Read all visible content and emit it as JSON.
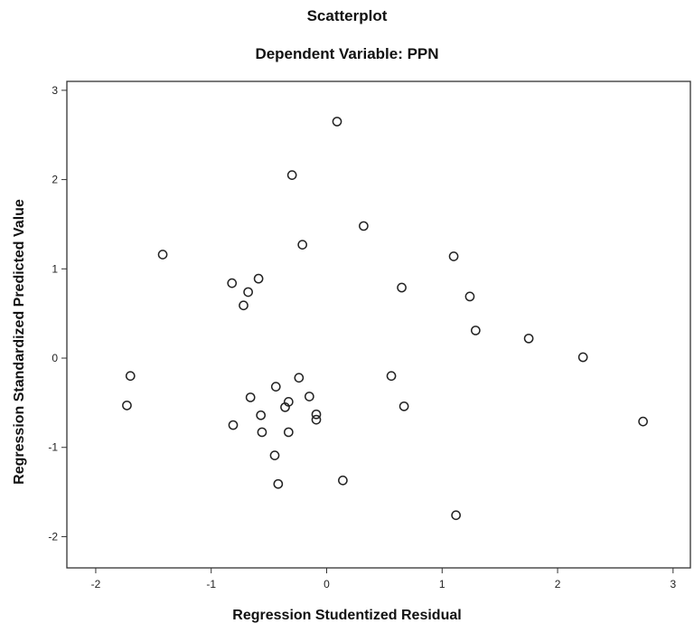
{
  "chart_data": {
    "type": "scatter",
    "title": "Scatterplot",
    "subtitle": "Dependent Variable: PPN",
    "xlabel": "Regression Studentized Residual",
    "ylabel": "Regression Standardized Predicted Value",
    "xlim": [
      -2.25,
      3.15
    ],
    "ylim": [
      -2.35,
      3.1
    ],
    "xticks": [
      "-2",
      "-1",
      "0",
      "1",
      "2",
      "3"
    ],
    "yticks": [
      "-2",
      "-1",
      "0",
      "1",
      "2",
      "3"
    ],
    "xtick_values": [
      -2,
      -1,
      0,
      1,
      2,
      3
    ],
    "ytick_values": [
      -2,
      -1,
      0,
      1,
      2,
      3
    ],
    "grid": false,
    "marker": "open-circle",
    "points": [
      {
        "x": 0.09,
        "y": 2.65
      },
      {
        "x": -0.3,
        "y": 2.05
      },
      {
        "x": 0.32,
        "y": 1.48
      },
      {
        "x": -0.21,
        "y": 1.27
      },
      {
        "x": -1.42,
        "y": 1.16
      },
      {
        "x": 1.1,
        "y": 1.14
      },
      {
        "x": -0.82,
        "y": 0.84
      },
      {
        "x": -0.59,
        "y": 0.89
      },
      {
        "x": -0.68,
        "y": 0.74
      },
      {
        "x": 0.65,
        "y": 0.79
      },
      {
        "x": 1.24,
        "y": 0.69
      },
      {
        "x": -0.72,
        "y": 0.59
      },
      {
        "x": 1.29,
        "y": 0.31
      },
      {
        "x": 1.75,
        "y": 0.22
      },
      {
        "x": 2.22,
        "y": 0.01
      },
      {
        "x": -1.7,
        "y": -0.2
      },
      {
        "x": 0.56,
        "y": -0.2
      },
      {
        "x": -0.24,
        "y": -0.22
      },
      {
        "x": -0.44,
        "y": -0.32
      },
      {
        "x": -0.15,
        "y": -0.43
      },
      {
        "x": -0.66,
        "y": -0.44
      },
      {
        "x": -1.73,
        "y": -0.53
      },
      {
        "x": -0.33,
        "y": -0.49
      },
      {
        "x": -0.36,
        "y": -0.55
      },
      {
        "x": 0.67,
        "y": -0.54
      },
      {
        "x": -0.57,
        "y": -0.64
      },
      {
        "x": -0.09,
        "y": -0.63
      },
      {
        "x": -0.09,
        "y": -0.69
      },
      {
        "x": -0.81,
        "y": -0.75
      },
      {
        "x": -0.56,
        "y": -0.83
      },
      {
        "x": -0.33,
        "y": -0.83
      },
      {
        "x": 2.74,
        "y": -0.71
      },
      {
        "x": -0.45,
        "y": -1.09
      },
      {
        "x": -0.42,
        "y": -1.41
      },
      {
        "x": 0.14,
        "y": -1.37
      },
      {
        "x": 1.12,
        "y": -1.76
      }
    ]
  }
}
